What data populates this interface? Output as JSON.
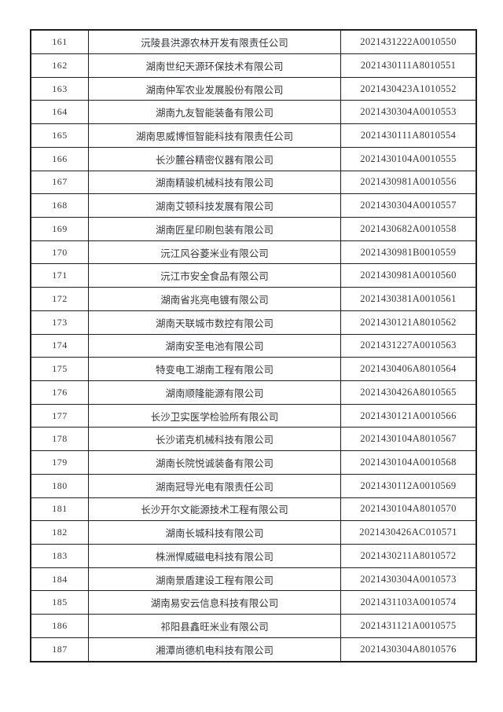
{
  "table": {
    "rows": [
      {
        "num": "161",
        "name": "沅陵县洪源农林开发有限责任公司",
        "code": "2021431222A0010550"
      },
      {
        "num": "162",
        "name": "湖南世纪天源环保技术有限公司",
        "code": "2021430111A8010551"
      },
      {
        "num": "163",
        "name": "湖南仲军农业发展股份有限公司",
        "code": "2021430423A1010552"
      },
      {
        "num": "164",
        "name": "湖南九友智能装备有限公司",
        "code": "2021430304A0010553"
      },
      {
        "num": "165",
        "name": "湖南思威博恒智能科技有限责任公司",
        "code": "2021430111A8010554"
      },
      {
        "num": "166",
        "name": "长沙麓谷精密仪器有限公司",
        "code": "2021430104A0010555"
      },
      {
        "num": "167",
        "name": "湖南精骏机械科技有限公司",
        "code": "2021430981A0010556"
      },
      {
        "num": "168",
        "name": "湖南艾顿科技发展有限公司",
        "code": "2021430304A0010557"
      },
      {
        "num": "169",
        "name": "湖南匠星印刷包装有限公司",
        "code": "2021430682A0010558"
      },
      {
        "num": "170",
        "name": "沅江风谷菱米业有限公司",
        "code": "2021430981B0010559"
      },
      {
        "num": "171",
        "name": "沅江市安全食品有限公司",
        "code": "2021430981A0010560"
      },
      {
        "num": "172",
        "name": "湖南省兆亮电镀有限公司",
        "code": "2021430381A0010561"
      },
      {
        "num": "173",
        "name": "湖南天联城市数控有限公司",
        "code": "2021430121A8010562"
      },
      {
        "num": "174",
        "name": "湖南安圣电池有限公司",
        "code": "2021431227A0010563"
      },
      {
        "num": "175",
        "name": "特变电工湖南工程有限公司",
        "code": "2021430406A8010564"
      },
      {
        "num": "176",
        "name": "湖南顺隆能源有限公司",
        "code": "2021430426A8010565"
      },
      {
        "num": "177",
        "name": "长沙卫实医学检验所有限公司",
        "code": "2021430121A0010566"
      },
      {
        "num": "178",
        "name": "长沙诺克机械科技有限公司",
        "code": "2021430104A8010567"
      },
      {
        "num": "179",
        "name": "湖南长院悦诚装备有限公司",
        "code": "2021430104A0010568"
      },
      {
        "num": "180",
        "name": "湖南冠导光电有限责任公司",
        "code": "2021430112A0010569"
      },
      {
        "num": "181",
        "name": "长沙开尔文能源技术工程有限公司",
        "code": "2021430104A8010570"
      },
      {
        "num": "182",
        "name": "湖南长城科技有限公司",
        "code": "2021430426AC010571"
      },
      {
        "num": "183",
        "name": "株洲悍威磁电科技有限公司",
        "code": "2021430211A8010572"
      },
      {
        "num": "184",
        "name": "湖南景盾建设工程有限公司",
        "code": "2021430304A0010573"
      },
      {
        "num": "185",
        "name": "湖南易安云信息科技有限公司",
        "code": "2021431103A0010574"
      },
      {
        "num": "186",
        "name": "祁阳县鑫旺米业有限公司",
        "code": "2021431121A0010575"
      },
      {
        "num": "187",
        "name": "湘潭尚德机电科技有限公司",
        "code": "2021430304A8010576"
      }
    ],
    "text_color": "#33363a",
    "border_color": "#1f1f1f",
    "background_color": "#ffffff"
  }
}
